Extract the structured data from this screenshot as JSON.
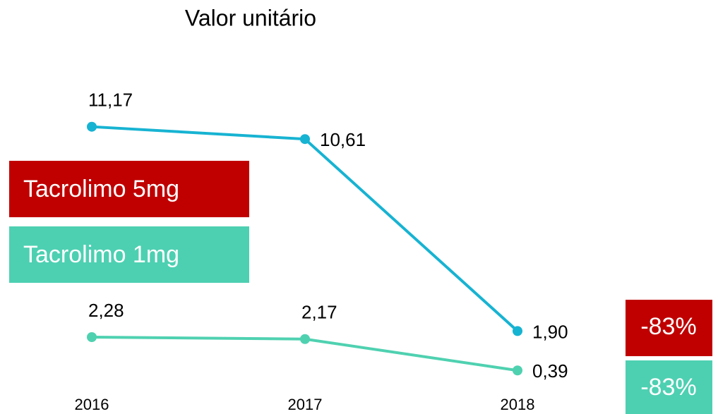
{
  "chart_data": {
    "type": "line",
    "title": "Valor unitário",
    "categories": [
      "2016",
      "2017",
      "2018"
    ],
    "series": [
      {
        "name": "Tacrolimo 5mg",
        "color": "#17b3d2",
        "legend_color": "#c00000",
        "values": [
          11.17,
          10.61,
          1.9
        ],
        "value_labels": [
          "11,17",
          "10,61",
          "1,90"
        ]
      },
      {
        "name": "Tacrolimo 1mg",
        "color": "#4fd1b0",
        "legend_color": "#4dd0b1",
        "axis": "y2",
        "values": [
          2.28,
          2.17,
          0.39
        ],
        "value_labels": [
          "2,28",
          "2,17",
          "0,39"
        ]
      }
    ],
    "ylim": [
      -1,
      15
    ],
    "y2lim": [
      -1,
      19
    ],
    "annotations": [
      {
        "text": "-83%",
        "color": "#c00000"
      },
      {
        "text": "-83%",
        "color": "#4dd0b1"
      }
    ]
  }
}
